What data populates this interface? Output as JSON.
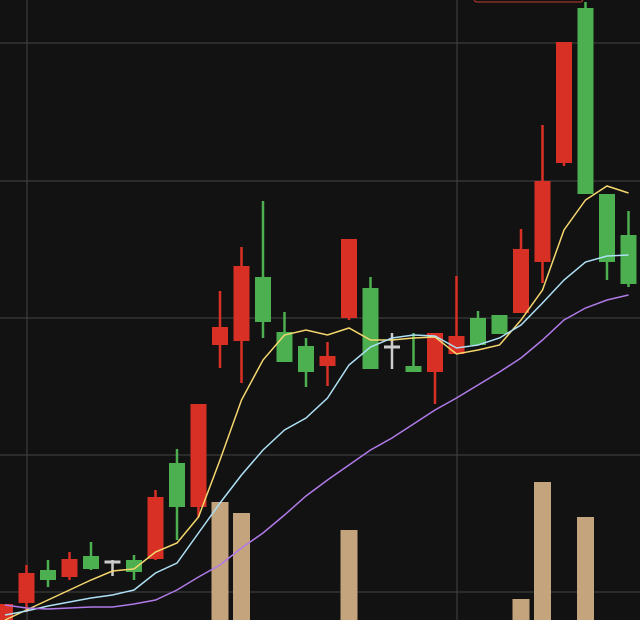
{
  "chart_data": {
    "type": "candlestick",
    "title": "",
    "xlabel": "",
    "ylabel": "",
    "grid": true,
    "ylim": [
      0,
      620
    ],
    "colors": {
      "up": "#d93025",
      "down": "#4caf50",
      "flat": "#cccccc",
      "ma_fast": "#f5d76e",
      "ma_mid": "#aee0f5",
      "ma_slow": "#b07ae8",
      "volume": "#c4a47c",
      "background": "#121212",
      "grid": "#444444"
    },
    "candles": [
      {
        "o": 0,
        "c": 16,
        "h": 16,
        "l": 0
      },
      {
        "o": 17,
        "c": 47,
        "h": 55,
        "l": 8
      },
      {
        "o": 50,
        "c": 40,
        "h": 60,
        "l": 33
      },
      {
        "o": 43,
        "c": 61,
        "h": 68,
        "l": 40
      },
      {
        "o": 64,
        "c": 51,
        "h": 78,
        "l": 50
      },
      {
        "o": 58,
        "c": 58,
        "h": 60,
        "l": 44
      },
      {
        "o": 60,
        "c": 48,
        "h": 65,
        "l": 40
      },
      {
        "o": 61,
        "c": 123,
        "h": 130,
        "l": 60
      },
      {
        "o": 157,
        "c": 113,
        "h": 171,
        "l": 80
      },
      {
        "o": 113,
        "c": 216,
        "h": 216,
        "l": 103
      },
      {
        "o": 275,
        "c": 293,
        "h": 329,
        "l": 252
      },
      {
        "o": 279,
        "c": 354,
        "h": 373,
        "l": 237
      },
      {
        "o": 343,
        "c": 298,
        "h": 419,
        "l": 282
      },
      {
        "o": 288,
        "c": 258,
        "h": 308,
        "l": 258
      },
      {
        "o": 274,
        "c": 248,
        "h": 282,
        "l": 233
      },
      {
        "o": 254,
        "c": 264,
        "h": 278,
        "l": 234
      },
      {
        "o": 302,
        "c": 381,
        "h": 381,
        "l": 300
      },
      {
        "o": 332,
        "c": 251,
        "h": 343,
        "l": 251
      },
      {
        "o": 273,
        "c": 273,
        "h": 287,
        "l": 251
      },
      {
        "o": 254,
        "c": 248,
        "h": 287,
        "l": 248
      },
      {
        "o": 248,
        "c": 287,
        "h": 287,
        "l": 216
      },
      {
        "o": 266,
        "c": 284,
        "h": 344,
        "l": 266
      },
      {
        "o": 302,
        "c": 275,
        "h": 309,
        "l": 275
      },
      {
        "o": 305,
        "c": 286,
        "h": 305,
        "l": 286
      },
      {
        "o": 307,
        "c": 371,
        "h": 391,
        "l": 307
      },
      {
        "o": 358,
        "c": 439,
        "h": 495,
        "l": 337
      },
      {
        "o": 457,
        "c": 578,
        "h": 578,
        "l": 454
      },
      {
        "o": 612,
        "c": 426,
        "h": 618,
        "l": 426
      },
      {
        "o": 426,
        "c": 358,
        "h": 426,
        "l": 340
      },
      {
        "o": 385,
        "c": 336,
        "h": 409,
        "l": 333
      }
    ],
    "ma_fast": [
      0,
      10,
      20,
      30,
      40,
      49,
      51,
      68,
      77,
      103,
      160,
      220,
      260,
      285,
      290,
      285,
      292,
      280,
      280,
      282,
      283,
      266,
      270,
      275,
      300,
      330,
      390,
      420,
      434,
      427
    ],
    "ma_mid": [
      5,
      9,
      14,
      18,
      22,
      25,
      30,
      47,
      57,
      87,
      117,
      145,
      170,
      190,
      202,
      222,
      255,
      273,
      282,
      285,
      284,
      272,
      275,
      282,
      295,
      317,
      340,
      358,
      364,
      365
    ],
    "ma_slow": [
      15,
      12,
      11,
      12,
      13,
      13,
      16,
      20,
      30,
      43,
      55,
      72,
      87,
      105,
      124,
      140,
      155,
      170,
      182,
      196,
      210,
      222,
      235,
      248,
      262,
      280,
      300,
      312,
      320,
      325
    ],
    "volume": [
      0,
      0,
      0,
      0,
      0,
      0,
      0,
      0,
      0,
      0,
      118,
      107,
      0,
      0,
      0,
      0,
      90,
      0,
      0,
      0,
      0,
      0,
      0,
      0,
      21,
      138,
      0,
      103,
      0,
      0
    ]
  }
}
